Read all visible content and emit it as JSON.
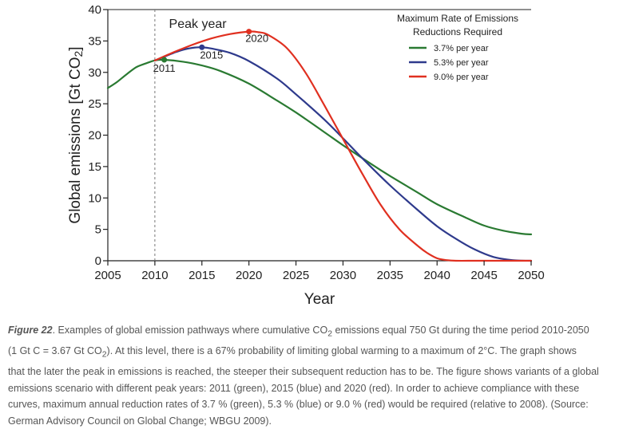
{
  "chart_data": {
    "type": "line",
    "xlabel": "Year",
    "ylabel": "Global emissions [Gt CO2]",
    "xlim": [
      2005,
      2050
    ],
    "ylim": [
      0,
      40
    ],
    "xticks": [
      2005,
      2010,
      2015,
      2020,
      2025,
      2030,
      2035,
      2040,
      2045,
      2050
    ],
    "yticks": [
      0,
      5,
      10,
      15,
      20,
      25,
      30,
      35,
      40
    ],
    "grid": false,
    "legend_title": [
      "Maximum Rate of Emissions",
      "Reductions Required"
    ],
    "legend_position": "top-right",
    "annotations": {
      "peak_year": "Peak year",
      "reference_line_x": 2010
    },
    "series": [
      {
        "name": "3.7% per year",
        "color": "#2a7a32",
        "peak": {
          "x": 2011,
          "y": 32,
          "label": "2011"
        },
        "x": [
          2005,
          2006,
          2007,
          2008,
          2009,
          2010,
          2011,
          2013,
          2015,
          2017,
          2020,
          2023,
          2025,
          2028,
          2030,
          2033,
          2035,
          2038,
          2040,
          2043,
          2045,
          2047,
          2049,
          2050
        ],
        "y": [
          27.5,
          28.5,
          29.7,
          30.8,
          31.4,
          31.9,
          32.0,
          31.7,
          31.1,
          30.2,
          28.2,
          25.5,
          23.6,
          20.5,
          18.4,
          15.4,
          13.5,
          10.8,
          9.0,
          6.9,
          5.6,
          4.8,
          4.3,
          4.2
        ]
      },
      {
        "name": "5.3% per year",
        "color": "#2e3a8c",
        "peak": {
          "x": 2015,
          "y": 34,
          "label": "2015"
        },
        "x": [
          2010,
          2011,
          2012,
          2013,
          2014,
          2015,
          2016,
          2018,
          2020,
          2023,
          2025,
          2028,
          2030,
          2032,
          2035,
          2038,
          2040,
          2042,
          2044,
          2046,
          2048,
          2050
        ],
        "y": [
          31.9,
          32.5,
          33.1,
          33.6,
          33.9,
          34.0,
          33.8,
          33.1,
          31.8,
          29.0,
          26.5,
          22.5,
          19.5,
          16.4,
          12.0,
          8.0,
          5.5,
          3.5,
          1.8,
          0.6,
          0.1,
          0.0
        ]
      },
      {
        "name": "9.0% per year",
        "color": "#e03020",
        "peak": {
          "x": 2020,
          "y": 36.5,
          "label": "2020"
        },
        "x": [
          2010,
          2012,
          2014,
          2016,
          2018,
          2020,
          2021,
          2022,
          2024,
          2026,
          2028,
          2030,
          2032,
          2034,
          2036,
          2038,
          2039,
          2040,
          2041,
          2042,
          2044,
          2046,
          2048,
          2050
        ],
        "y": [
          31.9,
          33.2,
          34.4,
          35.4,
          36.1,
          36.5,
          36.4,
          36.0,
          33.9,
          30.0,
          24.8,
          19.4,
          14.0,
          8.9,
          5.0,
          2.3,
          1.2,
          0.4,
          0.1,
          0.0,
          0.0,
          0.0,
          0.0,
          0.0
        ]
      }
    ]
  },
  "caption": {
    "label": "Figure 22",
    "line1_a": ".  Examples of global emission pathways where cumulative CO",
    "line1_sub": "2",
    "line1_b": " emissions equal 750 Gt during the time period 2010-2050",
    "line2_a": "(1 Gt C = 3.67 Gt CO",
    "line2_sub": "2",
    "line2_b": ").  At this level, there is a 67% probability of limiting global warming to a maximum of 2°C.  The graph shows",
    "line3": "that the later the peak in emissions is reached, the steeper their subsequent reduction has to be.  The figure shows variants of a global",
    "line4": "emissions scenario with different peak years: 2011 (green), 2015 (blue) and 2020 (red). In order to achieve compliance with these",
    "line5": "curves, maximum annual reduction rates of 3.7 % (green), 5.3 % (blue) or 9.0 % (red) would be required (relative to 2008). (Source:",
    "line6": "German Advisory Council on Global Change; WBGU 2009)."
  }
}
